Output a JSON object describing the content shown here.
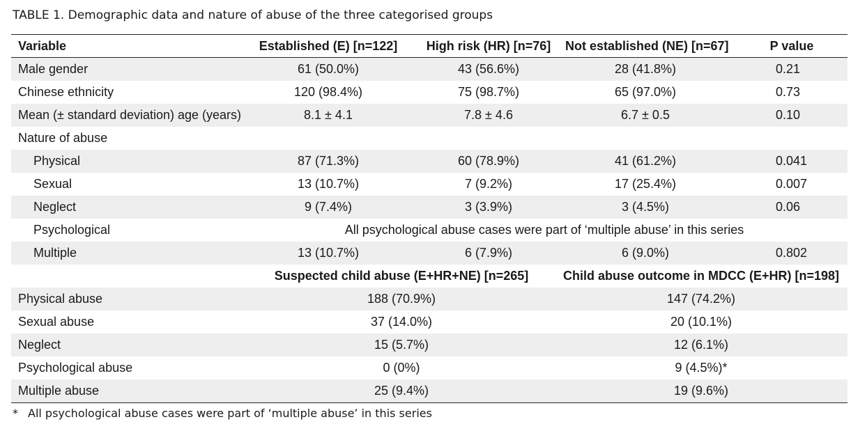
{
  "caption": {
    "label": "TABLE 1.",
    "text": "Demographic data and nature of abuse of the three categorised groups"
  },
  "header": {
    "variable": "Variable",
    "established": "Established (E) [n=122]",
    "high_risk": "High risk (HR) [n=76]",
    "not_established": "Not established (NE) [n=67]",
    "p_value": "P value"
  },
  "rows": [
    {
      "label": "Male gender",
      "e": "61 (50.0%)",
      "hr": "43 (56.6%)",
      "ne": "28 (41.8%)",
      "p": "0.21"
    },
    {
      "label": "Chinese ethnicity",
      "e": "120 (98.4%)",
      "hr": "75 (98.7%)",
      "ne": "65 (97.0%)",
      "p": "0.73"
    },
    {
      "label": "Mean (± standard deviation) age (years)",
      "e": "8.1 ± 4.1",
      "hr": "7.8 ± 4.6",
      "ne": "6.7 ± 0.5",
      "p": "0.10"
    },
    {
      "label": "Nature of abuse"
    },
    {
      "label": "Physical",
      "e": "87 (71.3%)",
      "hr": "60 (78.9%)",
      "ne": "41 (61.2%)",
      "p": "0.041"
    },
    {
      "label": "Sexual",
      "e": "13 (10.7%)",
      "hr": "7 (9.2%)",
      "ne": "17 (25.4%)",
      "p": "0.007"
    },
    {
      "label": "Neglect",
      "e": "9 (7.4%)",
      "hr": "3 (3.9%)",
      "ne": "3 (4.5%)",
      "p": "0.06"
    },
    {
      "label": "Psychological",
      "span": "All psychological abuse cases were part of ‘multiple abuse’ in this series"
    },
    {
      "label": "Multiple",
      "e": "13 (10.7%)",
      "hr": "6 (7.9%)",
      "ne": "6 (9.0%)",
      "p": "0.802"
    }
  ],
  "subheader": {
    "suspected": "Suspected child abuse (E+HR+NE) [n=265]",
    "outcome": "Child abuse outcome in MDCC (E+HR) [n=198]"
  },
  "outcome_rows": [
    {
      "label": "Physical abuse",
      "suspected": "188 (70.9%)",
      "outcome": "147 (74.2%)"
    },
    {
      "label": "Sexual abuse",
      "suspected": "37 (14.0%)",
      "outcome": "20 (10.1%)"
    },
    {
      "label": "Neglect",
      "suspected": "15 (5.7%)",
      "outcome": "12 (6.1%)"
    },
    {
      "label": "Psychological abuse",
      "suspected": "0 (0%)",
      "outcome": "9 (4.5%)*"
    },
    {
      "label": "Multiple abuse",
      "suspected": "25 (9.4%)",
      "outcome": "19 (9.6%)"
    }
  ],
  "footnote": {
    "mark": "*",
    "text": "All psychological abuse cases were part of ‘multiple abuse’ in this series"
  }
}
